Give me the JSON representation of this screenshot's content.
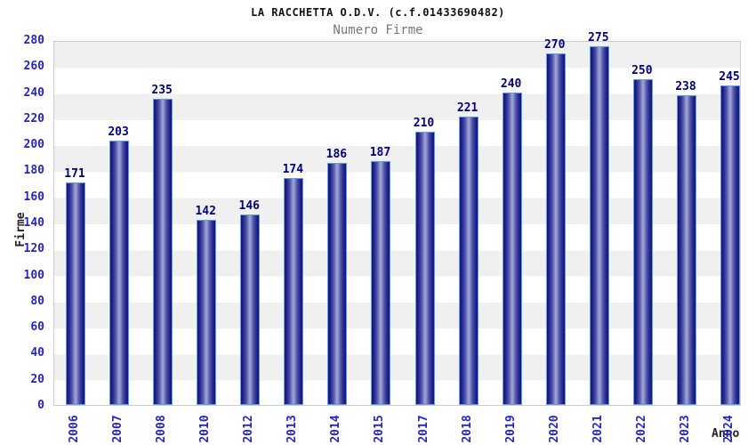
{
  "chart_data": {
    "type": "bar",
    "title": "LA RACCHETTA O.D.V. (c.f.01433690482)",
    "subtitle": "Numero Firme",
    "xlabel": "Anno",
    "ylabel": "Firme",
    "categories": [
      "2006",
      "2007",
      "2008",
      "2010",
      "2012",
      "2013",
      "2014",
      "2015",
      "2017",
      "2018",
      "2019",
      "2020",
      "2021",
      "2022",
      "2023",
      "2024"
    ],
    "values": [
      171,
      203,
      235,
      142,
      146,
      174,
      186,
      187,
      210,
      221,
      240,
      270,
      275,
      250,
      238,
      245
    ],
    "ylim": [
      0,
      280
    ],
    "ytick_step": 20,
    "grid": "alternating-horizontal-bands",
    "legend": "none",
    "colors": {
      "axis_tick_blue": "#2424cc",
      "value_label_navy": "#000080",
      "bar_edge_dark": "#14147a",
      "bar_center_light": "#a4aadb",
      "bar_border": "#5aa0e6",
      "band_gray": "#f0f0f0",
      "band_white": "#ffffff",
      "plot_border": "#cccccc",
      "title_color": "#111111",
      "subtitle_color": "#777777"
    }
  }
}
